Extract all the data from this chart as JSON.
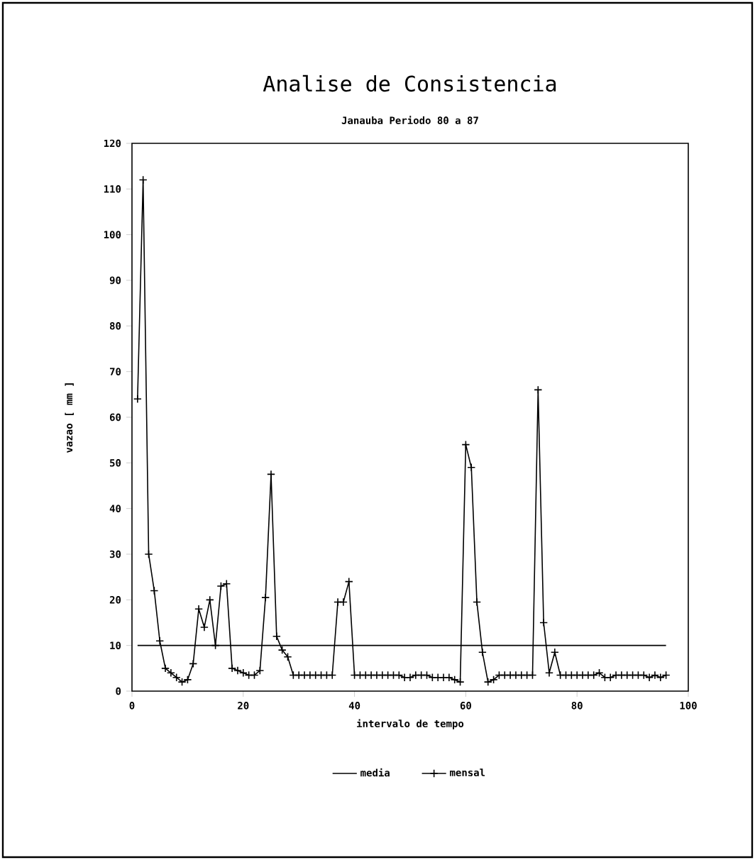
{
  "chart_data": {
    "type": "line",
    "title": "Analise de Consistencia",
    "subtitle": "Janauba  Periodo 80 a 87",
    "xlabel": "intervalo de tempo",
    "ylabel": "vazao [ mm ]",
    "xlim": [
      0,
      100
    ],
    "xticks": [
      0,
      20,
      40,
      60,
      80,
      100
    ],
    "ylim": [
      0,
      120
    ],
    "yticks": [
      0,
      10,
      20,
      30,
      40,
      50,
      60,
      70,
      80,
      90,
      100,
      110,
      120
    ],
    "grid": false,
    "legend": "bottom",
    "series": [
      {
        "name": "media",
        "color": "#000000",
        "marker": "none",
        "x": [
          1,
          96
        ],
        "values": [
          10,
          10
        ]
      },
      {
        "name": "mensal",
        "color": "#000000",
        "marker": "cross",
        "x": [
          1,
          2,
          3,
          4,
          5,
          6,
          7,
          8,
          9,
          10,
          11,
          12,
          13,
          14,
          15,
          16,
          17,
          18,
          19,
          20,
          21,
          22,
          23,
          24,
          25,
          26,
          27,
          28,
          29,
          30,
          31,
          32,
          33,
          34,
          35,
          36,
          37,
          38,
          39,
          40,
          41,
          42,
          43,
          44,
          45,
          46,
          47,
          48,
          49,
          50,
          51,
          52,
          53,
          54,
          55,
          56,
          57,
          58,
          59,
          60,
          61,
          62,
          63,
          64,
          65,
          66,
          67,
          68,
          69,
          70,
          71,
          72,
          73,
          74,
          75,
          76,
          77,
          78,
          79,
          80,
          81,
          82,
          83,
          84,
          85,
          86,
          87,
          88,
          89,
          90,
          91,
          92,
          93,
          94,
          95,
          96
        ],
        "values": [
          64,
          112,
          30,
          22,
          11,
          5,
          4,
          3,
          2,
          2.5,
          6,
          18,
          14,
          20,
          10,
          23,
          23.5,
          5,
          4.5,
          4,
          3.5,
          3.5,
          4.5,
          20.5,
          47.5,
          12,
          9,
          7.5,
          3.5,
          3.5,
          3.5,
          3.5,
          3.5,
          3.5,
          3.5,
          3.5,
          19.5,
          19.5,
          24,
          3.5,
          3.5,
          3.5,
          3.5,
          3.5,
          3.5,
          3.5,
          3.5,
          3.5,
          3,
          3,
          3.5,
          3.5,
          3.5,
          3,
          3,
          3,
          3,
          2.5,
          2,
          54,
          49,
          19.5,
          8.5,
          2,
          2.5,
          3.5,
          3.5,
          3.5,
          3.5,
          3.5,
          3.5,
          3.5,
          66,
          15,
          4,
          8.5,
          3.5,
          3.5,
          3.5,
          3.5,
          3.5,
          3.5,
          3.5,
          4,
          3,
          3,
          3.5,
          3.5,
          3.5,
          3.5,
          3.5,
          3.5,
          3,
          3.5,
          3,
          3.5
        ]
      }
    ]
  }
}
